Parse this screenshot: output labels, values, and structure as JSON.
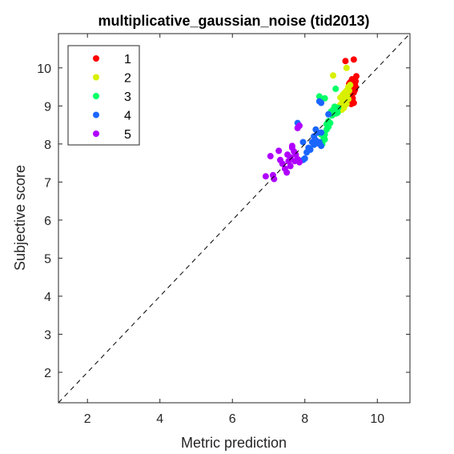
{
  "chart_data": {
    "type": "scatter",
    "title": "multiplicative_gaussian_noise (tid2013)",
    "xlabel": "Metric prediction",
    "ylabel": "Subjective score",
    "xlim": [
      1.2,
      10.9
    ],
    "ylim": [
      1.2,
      10.9
    ],
    "xticks": [
      2,
      4,
      6,
      8,
      10
    ],
    "yticks": [
      2,
      3,
      4,
      5,
      6,
      7,
      8,
      9,
      10
    ],
    "grid": false,
    "reference_line": "y = x (dashed)",
    "legend_position": "top-left",
    "series": [
      {
        "name": "1",
        "color": "#ff0000",
        "points": [
          [
            9.12,
            10.18
          ],
          [
            9.35,
            10.22
          ],
          [
            9.25,
            9.62
          ],
          [
            9.38,
            9.58
          ],
          [
            9.42,
            9.78
          ],
          [
            9.3,
            9.45
          ],
          [
            9.4,
            9.5
          ],
          [
            9.35,
            9.35
          ],
          [
            9.28,
            9.3
          ],
          [
            9.22,
            9.58
          ],
          [
            9.3,
            9.7
          ],
          [
            9.38,
            9.42
          ],
          [
            9.32,
            9.2
          ],
          [
            9.25,
            9.22
          ],
          [
            9.35,
            9.08
          ],
          [
            9.28,
            9.05
          ],
          [
            9.4,
            9.65
          ],
          [
            9.18,
            9.4
          ],
          [
            9.3,
            9.55
          ],
          [
            9.36,
            9.5
          ]
        ]
      },
      {
        "name": "2",
        "color": "#d8f000",
        "points": [
          [
            8.78,
            9.8
          ],
          [
            9.15,
            10.0
          ],
          [
            9.2,
            9.5
          ],
          [
            9.25,
            9.55
          ],
          [
            9.1,
            9.35
          ],
          [
            9.15,
            9.4
          ],
          [
            9.05,
            9.3
          ],
          [
            9.12,
            9.22
          ],
          [
            9.18,
            9.25
          ],
          [
            8.98,
            9.22
          ],
          [
            9.05,
            9.15
          ],
          [
            9.0,
            9.05
          ],
          [
            9.1,
            9.1
          ],
          [
            8.95,
            9.0
          ],
          [
            9.08,
            8.95
          ],
          [
            9.15,
            9.05
          ],
          [
            8.92,
            8.85
          ],
          [
            9.02,
            8.9
          ],
          [
            9.22,
            9.4
          ],
          [
            9.2,
            9.18
          ]
        ]
      },
      {
        "name": "3",
        "color": "#00ff66",
        "points": [
          [
            8.4,
            9.25
          ],
          [
            8.55,
            9.2
          ],
          [
            8.85,
            9.45
          ],
          [
            8.78,
            8.9
          ],
          [
            8.82,
            8.98
          ],
          [
            8.92,
            8.95
          ],
          [
            8.72,
            8.85
          ],
          [
            8.85,
            8.8
          ],
          [
            8.75,
            8.75
          ],
          [
            8.9,
            8.82
          ],
          [
            8.6,
            8.52
          ],
          [
            8.65,
            8.6
          ],
          [
            8.7,
            8.55
          ],
          [
            8.6,
            8.38
          ],
          [
            8.65,
            8.45
          ],
          [
            8.55,
            8.25
          ],
          [
            8.45,
            8.25
          ],
          [
            8.52,
            8.15
          ],
          [
            8.48,
            8.0
          ],
          [
            8.55,
            8.12
          ]
        ]
      },
      {
        "name": "4",
        "color": "#1a66ff",
        "points": [
          [
            7.8,
            8.55
          ],
          [
            8.4,
            9.12
          ],
          [
            8.45,
            9.08
          ],
          [
            8.65,
            8.78
          ],
          [
            8.3,
            8.38
          ],
          [
            8.35,
            8.3
          ],
          [
            8.45,
            8.3
          ],
          [
            8.25,
            8.2
          ],
          [
            8.3,
            8.1
          ],
          [
            8.2,
            8.05
          ],
          [
            8.35,
            8.02
          ],
          [
            8.4,
            8.05
          ],
          [
            7.95,
            8.05
          ],
          [
            8.25,
            7.98
          ],
          [
            8.1,
            7.9
          ],
          [
            8.15,
            7.85
          ],
          [
            8.05,
            7.78
          ],
          [
            8.0,
            7.62
          ],
          [
            7.95,
            7.58
          ],
          [
            8.45,
            7.95
          ]
        ]
      },
      {
        "name": "5",
        "color": "#b000ff",
        "points": [
          [
            7.8,
            8.42
          ],
          [
            7.85,
            8.48
          ],
          [
            6.92,
            7.15
          ],
          [
            7.12,
            7.18
          ],
          [
            7.15,
            7.08
          ],
          [
            7.05,
            7.68
          ],
          [
            7.28,
            7.82
          ],
          [
            7.32,
            7.58
          ],
          [
            7.38,
            7.48
          ],
          [
            7.45,
            7.35
          ],
          [
            7.55,
            7.55
          ],
          [
            7.6,
            7.65
          ],
          [
            7.52,
            7.72
          ],
          [
            7.65,
            7.9
          ],
          [
            7.7,
            7.8
          ],
          [
            7.75,
            7.72
          ],
          [
            7.8,
            7.6
          ],
          [
            7.72,
            7.55
          ],
          [
            7.85,
            7.52
          ],
          [
            7.6,
            7.42
          ],
          [
            7.65,
            7.95
          ],
          [
            7.5,
            7.25
          ]
        ]
      }
    ]
  }
}
